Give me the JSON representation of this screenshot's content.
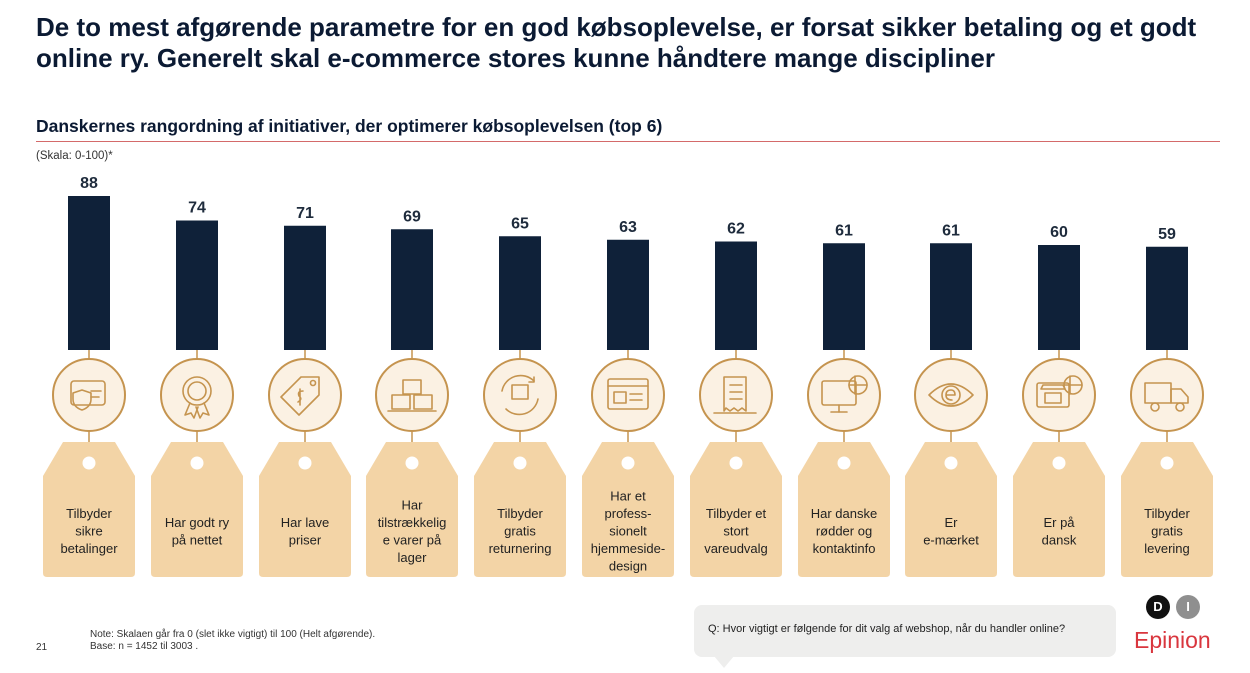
{
  "headline": "De to mest afgørende parametre for en god købsoplevelse, er forsat sikker betaling og et godt online ry. Generelt skal e-commerce stores kunne håndtere mange discipliner",
  "colors": {
    "bar": "#0f2139",
    "tag": "#f3d4a6",
    "circle_fill": "#fbf1e3",
    "circle_stroke": "#c5944f",
    "accent_rule": "#d46a6a",
    "brand": "#d9363e"
  },
  "chart_data": {
    "type": "bar",
    "title": "Danskernes rangordning af initiativer, der optimerer købsoplevelsen (top 6)",
    "scale_label": "(Skala: 0-100)*",
    "ylim": [
      0,
      100
    ],
    "categories": [
      [
        "Tilbyder",
        "sikre",
        "betalinger"
      ],
      [
        "Har godt ry",
        "på nettet"
      ],
      [
        "Har lave",
        "priser"
      ],
      [
        "Har",
        "tilstrækkelig",
        "e varer på",
        "lager"
      ],
      [
        "Tilbyder",
        "gratis",
        "returnering"
      ],
      [
        "Har et",
        "profess-",
        "sionelt",
        "hjemmeside-",
        "design"
      ],
      [
        "Tilbyder et",
        "stort",
        "vareudvalg"
      ],
      [
        "Har danske",
        "rødder og",
        "kontaktinfo"
      ],
      [
        "Er",
        "e-mærket"
      ],
      [
        "Er på",
        "dansk"
      ],
      [
        "Tilbyder",
        "gratis",
        "levering"
      ]
    ],
    "values": [
      88,
      74,
      71,
      69,
      65,
      63,
      62,
      61,
      61,
      60,
      59
    ],
    "icons": [
      "card-shield-icon",
      "award-badge-icon",
      "price-tag-icon",
      "boxes-icon",
      "return-box-icon",
      "webpage-icon",
      "receipt-list-icon",
      "shop-monitor-icon",
      "e-eye-icon",
      "shop-flag-icon",
      "delivery-truck-icon"
    ]
  },
  "note": {
    "line1": "Note: Skalaen går fra 0 (slet ikke vigtigt) til 100 (Helt afgørende).",
    "line2": "Base: n = 1452 til 3003 ."
  },
  "page_number": "21",
  "question": "Q: Hvor vigtigt er følgende for dit valg af webshop, når du handler online?",
  "logo": {
    "d": "D",
    "i": "I",
    "brand": "Epinion"
  }
}
